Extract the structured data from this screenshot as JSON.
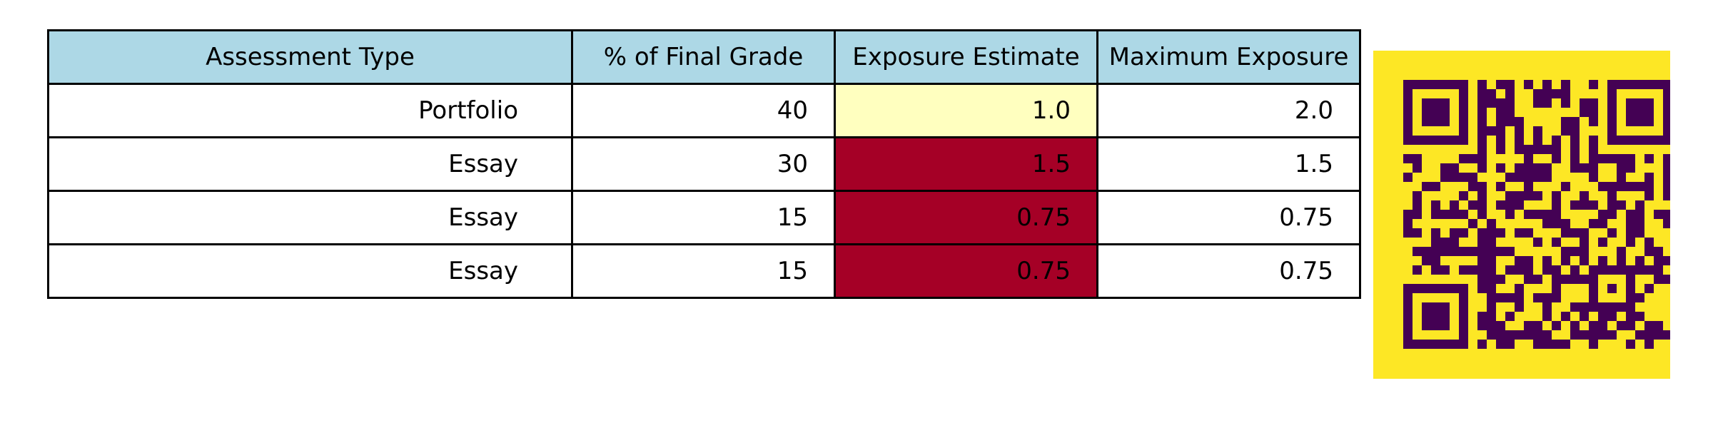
{
  "chart_data": {
    "type": "table",
    "header_color": "#add8e6",
    "columns": [
      "Assessment Type",
      "% of Final Grade",
      "Exposure Estimate",
      "Maximum Exposure"
    ],
    "rows": [
      {
        "assessment_type": "Portfolio",
        "percent_of_final_grade": "40",
        "exposure_estimate": "1.0",
        "maximum_exposure": "2.0",
        "exposure_cell_color": "#ffffbf"
      },
      {
        "assessment_type": "Essay",
        "percent_of_final_grade": "30",
        "exposure_estimate": "1.5",
        "maximum_exposure": "1.5",
        "exposure_cell_color": "#a50026"
      },
      {
        "assessment_type": "Essay",
        "percent_of_final_grade": "15",
        "exposure_estimate": "0.75",
        "maximum_exposure": "0.75",
        "exposure_cell_color": "#a50026"
      },
      {
        "assessment_type": "Essay",
        "percent_of_final_grade": "15",
        "exposure_estimate": "0.75",
        "maximum_exposure": "0.75",
        "exposure_cell_color": "#a50026"
      }
    ]
  },
  "qr_code": {
    "background_color": "#fde725",
    "module_color": "#440154"
  }
}
